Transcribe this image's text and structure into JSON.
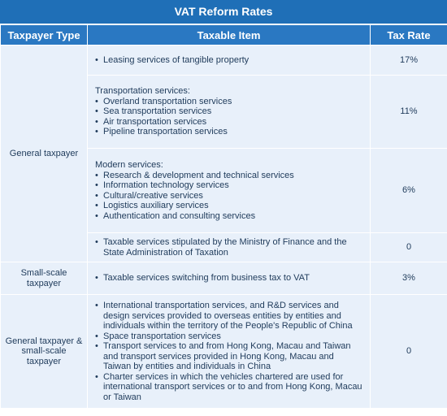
{
  "title": "VAT Reform Rates",
  "headers": [
    "Taxpayer Type",
    "Taxable Item",
    "Tax Rate"
  ],
  "bullet": "•",
  "rows": [
    {
      "type": "General taxpayer",
      "groups": [
        {
          "heading": "",
          "items": [
            "Leasing services of tangible property"
          ],
          "rate": "17%"
        },
        {
          "heading": "Transportation services:",
          "items": [
            "Overland transportation services",
            "Sea transportation services",
            "Air transportation services",
            "Pipeline transportation services"
          ],
          "rate": "11%"
        },
        {
          "heading": "Modern services:",
          "items": [
            "Research & development and technical services",
            "Information technology services",
            "Cultural/creative services",
            "Logistics auxiliary services",
            "Authentication and consulting services"
          ],
          "rate": "6%"
        },
        {
          "heading": "",
          "items": [
            "Taxable services stipulated by the Ministry of Finance and the State Administration of Taxation"
          ],
          "rate": "0"
        }
      ]
    },
    {
      "type": "Small-scale taxpayer",
      "groups": [
        {
          "heading": "",
          "items": [
            "Taxable services switching from business tax to VAT"
          ],
          "rate": "3%"
        }
      ]
    },
    {
      "type": "General taxpayer & small-scale taxpayer",
      "groups": [
        {
          "heading": "",
          "items": [
            "International transportation services, and R&D services and design services provided to overseas entities by entities and individuals within the territory of the People's Republic of China",
            "Space transportation services",
            "Transport services to and from Hong Kong, Macau and Taiwan and transport services provided in Hong Kong, Macau and Taiwan by entities and individuals in China",
            "Charter services in which the vehicles chartered are used for international transport services or to and from Hong Kong, Macau or Taiwan"
          ],
          "rate": "0"
        }
      ]
    }
  ],
  "colors": {
    "title_bg": "#1f6fb7",
    "header_bg": "#2a78c2",
    "cell_bg": "#e8f0fa",
    "text": "#1e3a5a"
  }
}
